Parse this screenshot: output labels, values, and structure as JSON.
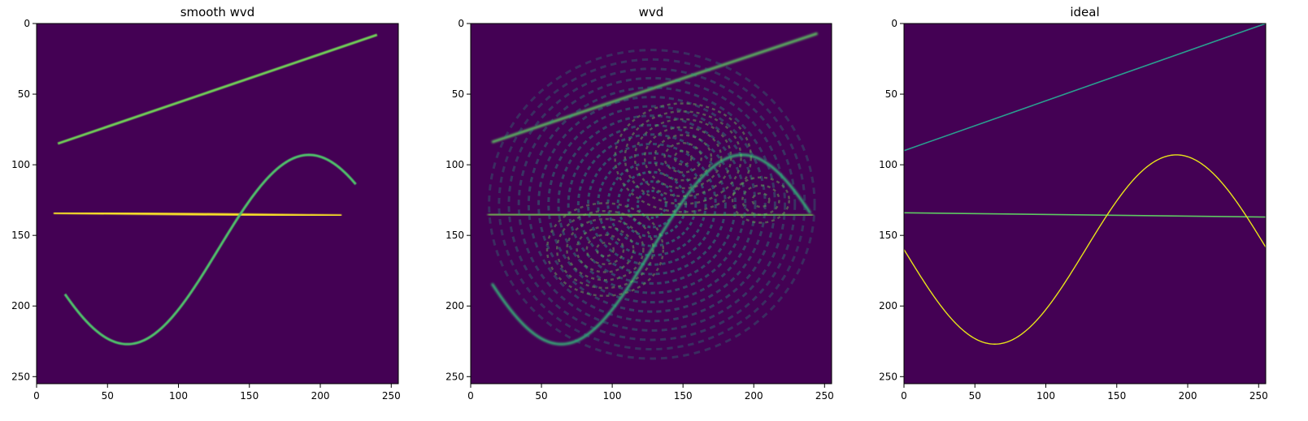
{
  "figure": {
    "background_color": "#440154"
  },
  "chart_data": [
    {
      "type": "heatmap",
      "title": "smooth wvd",
      "xlim": [
        0,
        255
      ],
      "ylim": [
        255,
        0
      ],
      "xticks": [
        0,
        50,
        100,
        150,
        200,
        250
      ],
      "yticks": [
        0,
        50,
        100,
        150,
        200,
        250
      ],
      "colormap": "viridis",
      "features": [
        {
          "kind": "line",
          "x": [
            15,
            240
          ],
          "y": [
            85,
            8
          ],
          "color": "#6fcf56"
        },
        {
          "kind": "line",
          "x": [
            12,
            215
          ],
          "y": [
            134,
            136
          ],
          "color": "#fde725"
        },
        {
          "kind": "sine",
          "x_range": [
            20,
            225
          ],
          "center": 160,
          "amplitude": 67,
          "period": 256,
          "phase_x": 64,
          "color": "#4fc16b"
        }
      ]
    },
    {
      "type": "heatmap",
      "title": "wvd",
      "xlim": [
        0,
        255
      ],
      "ylim": [
        255,
        0
      ],
      "xticks": [
        0,
        50,
        100,
        150,
        200,
        250
      ],
      "yticks": [
        0,
        50,
        100,
        150,
        200,
        250
      ],
      "colormap": "viridis",
      "features": [
        {
          "kind": "line",
          "x": [
            15,
            245
          ],
          "y": [
            84,
            7
          ],
          "color": "#5ec962"
        },
        {
          "kind": "line",
          "x": [
            12,
            242
          ],
          "y": [
            135,
            136
          ],
          "color": "#7ad151"
        },
        {
          "kind": "sine",
          "x_range": [
            15,
            240
          ],
          "center": 160,
          "amplitude": 67,
          "period": 256,
          "phase_x": 64,
          "color": "#35b779"
        },
        {
          "kind": "interference",
          "center": [
            128,
            128
          ],
          "radius": 115,
          "color": "#21a585"
        }
      ]
    },
    {
      "type": "heatmap",
      "title": "ideal",
      "xlim": [
        0,
        255
      ],
      "ylim": [
        255,
        0
      ],
      "xticks": [
        0,
        50,
        100,
        150,
        200,
        250
      ],
      "yticks": [
        0,
        50,
        100,
        150,
        200,
        250
      ],
      "colormap": "viridis",
      "features": [
        {
          "kind": "line",
          "x": [
            0,
            255
          ],
          "y": [
            90,
            0
          ],
          "color": "#2a9d8f"
        },
        {
          "kind": "line",
          "x": [
            0,
            255
          ],
          "y": [
            134,
            137
          ],
          "color": "#5ec962"
        },
        {
          "kind": "sine",
          "x_range": [
            0,
            255
          ],
          "center": 160,
          "amplitude": 67,
          "period": 256,
          "phase_x": 64,
          "color": "#e8e419"
        }
      ]
    }
  ]
}
